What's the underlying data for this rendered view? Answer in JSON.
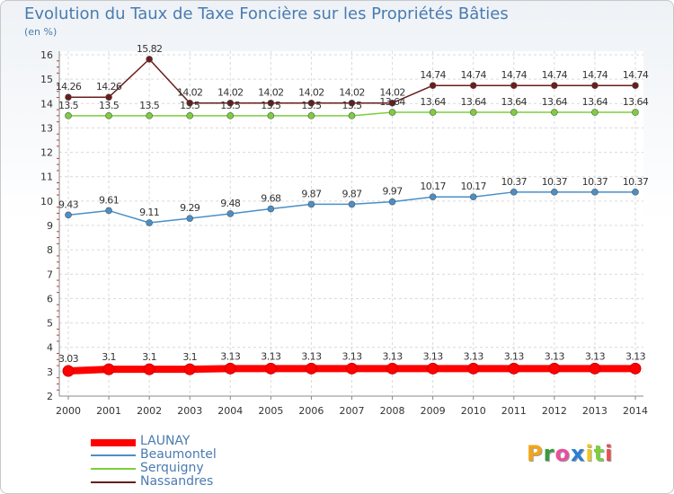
{
  "chart_data": {
    "type": "line",
    "title": "Evolution du Taux de Taxe Foncière sur les Propriétés Bâties",
    "ylabel": "(en %)",
    "xlabel": "",
    "ylim": [
      2,
      16
    ],
    "yticks": [
      2,
      3,
      4,
      5,
      6,
      7,
      8,
      9,
      10,
      11,
      12,
      13,
      14,
      15,
      16
    ],
    "x": [
      "2000",
      "2001",
      "2002",
      "2003",
      "2004",
      "2005",
      "2006",
      "2007",
      "2008",
      "2009",
      "2010",
      "2011",
      "2012",
      "2013",
      "2014"
    ],
    "series": [
      {
        "name": "LAUNAY",
        "color": "#ff0000",
        "values": [
          3.03,
          3.1,
          3.1,
          3.1,
          3.13,
          3.13,
          3.13,
          3.13,
          3.13,
          3.13,
          3.13,
          3.13,
          3.13,
          3.13,
          3.13
        ],
        "labels": [
          "3.03",
          "3.1",
          "3.1",
          "3.1",
          "3.13",
          "3.13",
          "3.13",
          "3.13",
          "3.13",
          "3.13",
          "3.13",
          "3.13",
          "3.13",
          "3.13",
          "3.13"
        ]
      },
      {
        "name": "Beaumontel",
        "color": "#4a8fc8",
        "values": [
          9.43,
          9.61,
          9.11,
          9.29,
          9.48,
          9.68,
          9.87,
          9.87,
          9.97,
          10.17,
          10.17,
          10.37,
          10.37,
          10.37,
          10.37
        ],
        "labels": [
          "9.43",
          "9.61",
          "9.11",
          "9.29",
          "9.48",
          "9.68",
          "9.87",
          "9.87",
          "9.97",
          "10.17",
          "10.17",
          "10.37",
          "10.37",
          "10.37",
          "10.37"
        ]
      },
      {
        "name": "Serquigny",
        "color": "#7ccf3c",
        "values": [
          13.5,
          13.5,
          13.5,
          13.5,
          13.5,
          13.5,
          13.5,
          13.5,
          13.64,
          13.64,
          13.64,
          13.64,
          13.64,
          13.64,
          13.64
        ],
        "labels": [
          "13.5",
          "13.5",
          "13.5",
          "13.5",
          "13.5",
          "13.5",
          "13.5",
          "13.5",
          "13.64",
          "13.64",
          "13.64",
          "13.64",
          "13.64",
          "13.64",
          "13.64"
        ]
      },
      {
        "name": "Nassandres",
        "color": "#6b1c1c",
        "values": [
          14.26,
          14.26,
          15.82,
          14.02,
          14.02,
          14.02,
          14.02,
          14.02,
          14.02,
          14.74,
          14.74,
          14.74,
          14.74,
          14.74,
          14.74
        ],
        "labels": [
          "14.26",
          "14.26",
          "15.82",
          "14.02",
          "14.02",
          "14.02",
          "14.02",
          "14.02",
          "14.02",
          "14.74",
          "14.74",
          "14.74",
          "14.74",
          "14.74",
          "14.74"
        ]
      }
    ],
    "legend": "bottom-left"
  },
  "logo": {
    "letters": [
      "P",
      "r",
      "o",
      "x",
      "i",
      "t",
      "i"
    ],
    "colors": [
      "#f2a51a",
      "#3a9a3a",
      "#e94e9b",
      "#2a7fd4",
      "#f2c81a",
      "#7ccf3c",
      "#e94e4e"
    ]
  }
}
